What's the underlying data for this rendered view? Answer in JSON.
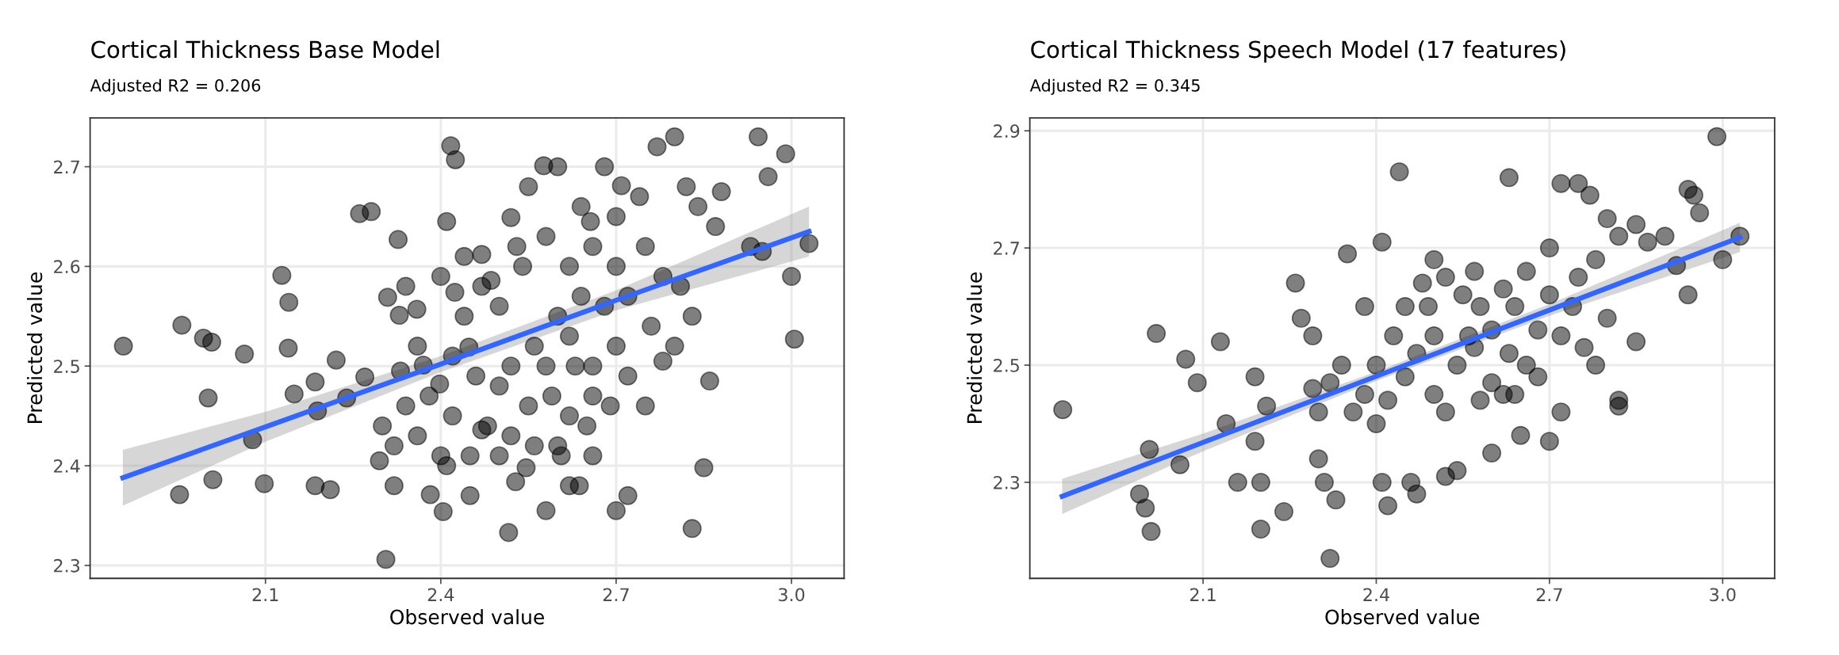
{
  "chart_data": [
    {
      "type": "scatter",
      "title": "Cortical Thickness Base Model",
      "subtitle": "Adjusted R2 = 0.206",
      "xlabel": "Observed value",
      "ylabel": "Predicted value",
      "xlim": [
        1.8,
        3.09
      ],
      "ylim": [
        2.287,
        2.749
      ],
      "xticks": [
        2.1,
        2.4,
        2.7,
        {
          "value": 3.0,
          "label": "3.0"
        }
      ],
      "yticks": [
        2.3,
        2.4,
        2.5,
        2.6,
        2.7
      ],
      "grid": true,
      "series": [
        {
          "marker": "circle",
          "color": "#000000",
          "x": [
            1.857,
            1.953,
            1.957,
            1.994,
            2.008,
            2.002,
            2.01,
            2.064,
            2.078,
            2.098,
            2.128,
            2.14,
            2.139,
            2.149,
            2.185,
            2.189,
            2.185,
            2.211,
            2.221,
            2.239,
            2.261,
            2.281,
            2.27,
            2.295,
            2.306,
            2.309,
            2.329,
            2.331,
            2.359,
            2.327,
            2.37,
            2.382,
            2.398,
            2.404,
            2.417,
            2.425,
            2.41,
            2.424,
            2.448,
            2.47,
            2.47,
            2.52,
            2.486,
            2.516,
            2.528,
            2.546,
            2.637,
            2.606,
            2.576,
            2.656,
            2.709,
            2.943,
            2.99,
            3.0,
            3.005,
            3.03,
            2.96,
            2.95,
            2.93,
            2.86,
            2.85,
            2.83,
            2.87,
            2.88,
            2.8,
            2.77,
            2.82,
            2.84,
            2.78,
            2.81,
            2.83,
            2.8,
            2.78,
            2.75,
            2.72,
            2.7,
            2.66,
            2.62,
            2.58,
            2.6,
            2.65,
            2.69,
            2.7,
            2.66,
            2.62,
            2.59,
            2.55,
            2.52,
            2.48,
            2.45,
            2.42,
            2.4,
            2.38,
            2.36,
            2.34,
            2.32,
            2.3,
            2.44,
            2.5,
            2.54,
            2.58,
            2.62,
            2.66,
            2.7,
            2.74,
            2.75,
            2.72,
            2.68,
            2.64,
            2.6,
            2.56,
            2.5,
            2.46,
            2.42,
            2.55,
            2.6,
            2.64,
            2.68,
            2.53,
            2.47,
            2.44,
            2.4,
            2.36,
            2.34,
            2.5,
            2.56,
            2.62,
            2.66,
            2.72,
            2.76,
            2.52,
            2.45,
            2.41,
            2.32,
            2.58,
            2.63,
            2.7
          ],
          "values": [
            2.52,
            2.371,
            2.541,
            2.528,
            2.524,
            2.468,
            2.386,
            2.512,
            2.426,
            2.382,
            2.591,
            2.564,
            2.518,
            2.472,
            2.484,
            2.455,
            2.38,
            2.376,
            2.506,
            2.468,
            2.653,
            2.655,
            2.489,
            2.405,
            2.306,
            2.569,
            2.551,
            2.495,
            2.557,
            2.627,
            2.501,
            2.371,
            2.482,
            2.354,
            2.721,
            2.707,
            2.645,
            2.574,
            2.519,
            2.436,
            2.612,
            2.649,
            2.586,
            2.333,
            2.384,
            2.398,
            2.38,
            2.41,
            2.701,
            2.645,
            2.681,
            2.73,
            2.713,
            2.59,
            2.527,
            2.623,
            2.69,
            2.615,
            2.62,
            2.485,
            2.398,
            2.337,
            2.64,
            2.675,
            2.73,
            2.72,
            2.68,
            2.66,
            2.59,
            2.58,
            2.55,
            2.52,
            2.505,
            2.46,
            2.37,
            2.355,
            2.41,
            2.38,
            2.355,
            2.42,
            2.44,
            2.46,
            2.52,
            2.5,
            2.53,
            2.47,
            2.46,
            2.5,
            2.44,
            2.41,
            2.45,
            2.41,
            2.47,
            2.43,
            2.46,
            2.42,
            2.44,
            2.55,
            2.56,
            2.6,
            2.63,
            2.6,
            2.62,
            2.65,
            2.67,
            2.62,
            2.57,
            2.56,
            2.57,
            2.55,
            2.52,
            2.48,
            2.49,
            2.51,
            2.68,
            2.7,
            2.66,
            2.7,
            2.62,
            2.58,
            2.61,
            2.59,
            2.52,
            2.58,
            2.41,
            2.42,
            2.45,
            2.47,
            2.49,
            2.54,
            2.43,
            2.37,
            2.4,
            2.38,
            2.5,
            2.5,
            2.6
          ]
        },
        {
          "type": "line",
          "color": "#3366ff",
          "x": [
            1.856,
            2.1,
            2.4,
            2.7,
            3.03
          ],
          "values": [
            2.388,
            2.439,
            2.502,
            2.566,
            2.635
          ],
          "lower": [
            2.36,
            2.424,
            2.494,
            2.556,
            2.61
          ],
          "upper": [
            2.416,
            2.454,
            2.51,
            2.576,
            2.66
          ]
        }
      ]
    },
    {
      "type": "scatter",
      "title": "Cortical Thickness Speech Model (17 features)",
      "subtitle": "Adjusted R2 = 0.345",
      "xlabel": "Observed value",
      "ylabel": "Predicted value",
      "xlim": [
        1.8,
        3.09
      ],
      "ylim": [
        2.136,
        2.922
      ],
      "xticks": [
        2.1,
        2.4,
        2.7,
        {
          "value": 3.0,
          "label": "3.0"
        }
      ],
      "yticks": [
        2.3,
        2.5,
        2.7,
        2.9
      ],
      "grid": true,
      "series": [
        {
          "marker": "circle",
          "color": "#000000",
          "x": [
            1.857,
            2.0,
            2.01,
            2.007,
            2.019,
            1.99,
            2.06,
            2.07,
            2.09,
            2.13,
            2.14,
            2.16,
            2.19,
            2.19,
            2.2,
            2.21,
            2.24,
            2.2,
            2.26,
            2.27,
            2.29,
            2.29,
            2.3,
            2.31,
            2.32,
            2.33,
            2.35,
            2.38,
            2.41,
            2.42,
            2.41,
            2.44,
            2.46,
            2.47,
            2.52,
            2.54,
            2.6,
            2.63,
            2.62,
            2.65,
            2.7,
            2.72,
            2.72,
            2.75,
            2.77,
            2.8,
            2.82,
            2.85,
            2.87,
            2.94,
            2.95,
            2.96,
            2.99,
            3.03,
            3.0,
            2.94,
            2.92,
            2.9,
            2.85,
            2.82,
            2.82,
            2.78,
            2.76,
            2.8,
            2.74,
            2.7,
            2.68,
            2.66,
            2.63,
            2.6,
            2.58,
            2.55,
            2.52,
            2.5,
            2.48,
            2.45,
            2.43,
            2.4,
            2.38,
            2.36,
            2.34,
            2.32,
            2.3,
            2.45,
            2.5,
            2.54,
            2.57,
            2.6,
            2.64,
            2.68,
            2.72,
            2.75,
            2.78,
            2.7,
            2.66,
            2.62,
            2.56,
            2.5,
            2.47,
            2.42,
            2.4,
            2.52,
            2.58,
            2.64,
            2.57,
            2.49
          ],
          "values": [
            2.424,
            2.256,
            2.216,
            2.356,
            2.554,
            2.28,
            2.33,
            2.51,
            2.47,
            2.54,
            2.4,
            2.3,
            2.37,
            2.48,
            2.3,
            2.43,
            2.25,
            2.22,
            2.64,
            2.58,
            2.55,
            2.46,
            2.34,
            2.3,
            2.17,
            2.27,
            2.69,
            2.6,
            2.71,
            2.26,
            2.3,
            2.83,
            2.3,
            2.28,
            2.31,
            2.32,
            2.35,
            2.82,
            2.45,
            2.38,
            2.37,
            2.42,
            2.81,
            2.81,
            2.79,
            2.75,
            2.72,
            2.74,
            2.71,
            2.8,
            2.79,
            2.76,
            2.89,
            2.72,
            2.68,
            2.62,
            2.67,
            2.72,
            2.54,
            2.44,
            2.43,
            2.5,
            2.53,
            2.58,
            2.6,
            2.62,
            2.56,
            2.5,
            2.52,
            2.56,
            2.6,
            2.62,
            2.65,
            2.68,
            2.64,
            2.6,
            2.55,
            2.5,
            2.45,
            2.42,
            2.5,
            2.47,
            2.42,
            2.48,
            2.45,
            2.5,
            2.53,
            2.47,
            2.45,
            2.48,
            2.55,
            2.65,
            2.68,
            2.7,
            2.66,
            2.63,
            2.55,
            2.55,
            2.52,
            2.44,
            2.4,
            2.42,
            2.44,
            2.6,
            2.66,
            2.6
          ]
        },
        {
          "type": "line",
          "color": "#3366ff",
          "x": [
            1.856,
            2.1,
            2.4,
            2.7,
            3.03
          ],
          "values": [
            2.276,
            2.368,
            2.481,
            2.594,
            2.718
          ],
          "lower": [
            2.246,
            2.353,
            2.473,
            2.584,
            2.693
          ],
          "upper": [
            2.306,
            2.383,
            2.489,
            2.604,
            2.743
          ]
        }
      ]
    }
  ]
}
